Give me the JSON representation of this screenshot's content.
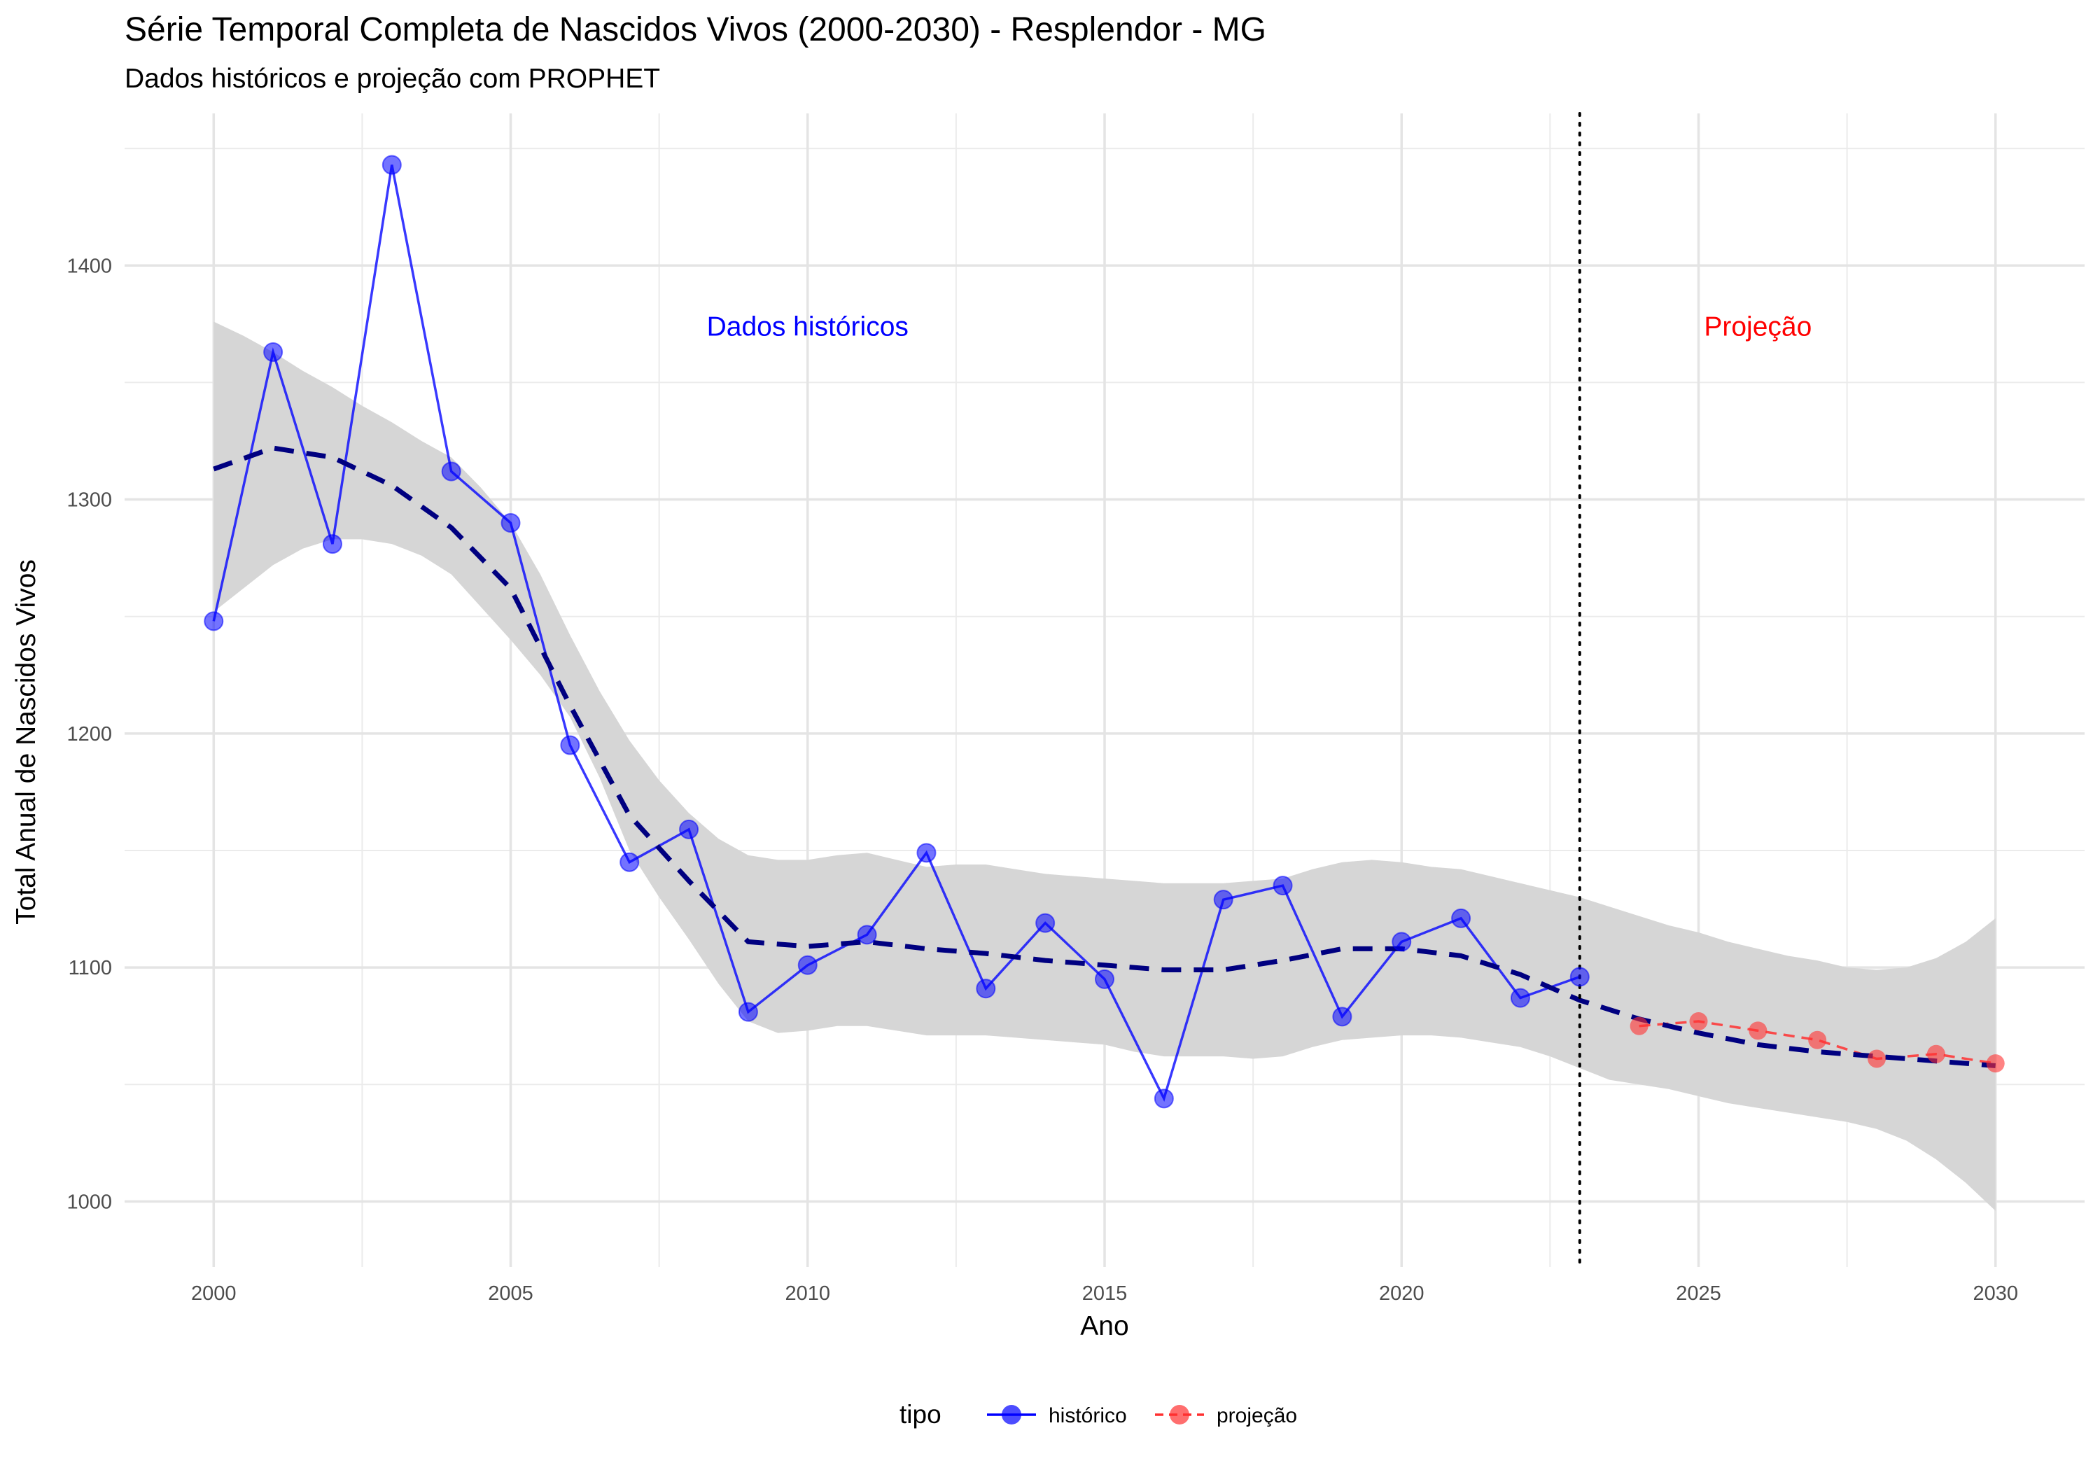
{
  "chart_data": {
    "type": "line",
    "title": "Série Temporal Completa de Nascidos Vivos (2000-2030) -  Resplendor - MG",
    "subtitle": "Dados históricos e projeção com PROPHET",
    "xlabel": "Ano",
    "ylabel": "Total Anual de Nascidos Vivos",
    "xlim": [
      1998.5,
      2031.5
    ],
    "ylim": [
      972,
      1465
    ],
    "x_ticks": [
      2000,
      2005,
      2010,
      2015,
      2020,
      2025,
      2030
    ],
    "y_ticks": [
      1000,
      1100,
      1200,
      1300,
      1400
    ],
    "grid": true,
    "legend_position": "bottom",
    "legend": {
      "title": "tipo",
      "entries": [
        {
          "label": "histórico",
          "color": "#0000ff"
        },
        {
          "label": "projeção",
          "color": "#ff3030"
        }
      ]
    },
    "annotations": [
      {
        "text": "Dados históricos",
        "x": 2010,
        "y": 1370,
        "color": "#0000ff"
      },
      {
        "text": "Projeção",
        "x": 2026,
        "y": 1370,
        "color": "#ff0000"
      }
    ],
    "vline_x": 2023,
    "series": [
      {
        "name": "histórico",
        "color": "#0000ff",
        "x": [
          2000,
          2001,
          2002,
          2003,
          2004,
          2005,
          2006,
          2007,
          2008,
          2009,
          2010,
          2011,
          2012,
          2013,
          2014,
          2015,
          2016,
          2017,
          2018,
          2019,
          2020,
          2021,
          2022,
          2023
        ],
        "values": [
          1248,
          1363,
          1281,
          1443,
          1312,
          1290,
          1195,
          1145,
          1159,
          1081,
          1101,
          1114,
          1149,
          1091,
          1119,
          1095,
          1044,
          1129,
          1135,
          1079,
          1111,
          1121,
          1087,
          1096
        ]
      },
      {
        "name": "projeção",
        "color": "#ff3030",
        "x": [
          2024,
          2025,
          2026,
          2027,
          2028,
          2029,
          2030
        ],
        "values": [
          1075,
          1077,
          1073,
          1069,
          1061,
          1063,
          1059
        ]
      }
    ],
    "trend": {
      "color": "#000080",
      "x": [
        2000,
        2001,
        2002,
        2003,
        2004,
        2005,
        2006,
        2007,
        2008,
        2009,
        2010,
        2011,
        2012,
        2013,
        2014,
        2015,
        2016,
        2017,
        2018,
        2019,
        2020,
        2021,
        2022,
        2023,
        2024,
        2025,
        2026,
        2027,
        2028,
        2029,
        2030
      ],
      "values": [
        1313,
        1322,
        1318,
        1306,
        1288,
        1262,
        1212,
        1165,
        1137,
        1111,
        1109,
        1111,
        1108,
        1106,
        1103,
        1101,
        1099,
        1099,
        1103,
        1108,
        1108,
        1105,
        1097,
        1086,
        1078,
        1072,
        1067,
        1064,
        1062,
        1060,
        1058
      ]
    },
    "interval": {
      "color": "#d6d6d6",
      "x": [
        2000,
        2000.5,
        2001,
        2001.5,
        2002,
        2002.5,
        2003,
        2003.5,
        2004,
        2004.5,
        2005,
        2005.5,
        2006,
        2006.5,
        2007,
        2007.5,
        2008,
        2008.5,
        2009,
        2009.5,
        2010,
        2010.5,
        2011,
        2011.5,
        2012,
        2012.5,
        2013,
        2013.5,
        2014,
        2014.5,
        2015,
        2015.5,
        2016,
        2016.5,
        2017,
        2017.5,
        2018,
        2018.5,
        2019,
        2019.5,
        2020,
        2020.5,
        2021,
        2021.5,
        2022,
        2022.5,
        2023,
        2023.5,
        2024,
        2024.5,
        2025,
        2025.5,
        2026,
        2026.5,
        2027,
        2027.5,
        2028,
        2028.5,
        2029,
        2029.5,
        2030
      ],
      "upper": [
        1376,
        1370,
        1363,
        1355,
        1348,
        1340,
        1333,
        1325,
        1318,
        1305,
        1290,
        1268,
        1242,
        1218,
        1197,
        1180,
        1166,
        1155,
        1148,
        1146,
        1146,
        1148,
        1149,
        1146,
        1143,
        1144,
        1144,
        1142,
        1140,
        1139,
        1138,
        1137,
        1136,
        1136,
        1136,
        1137,
        1138,
        1142,
        1145,
        1146,
        1145,
        1143,
        1142,
        1139,
        1136,
        1133,
        1130,
        1126,
        1122,
        1118,
        1115,
        1111,
        1108,
        1105,
        1103,
        1100,
        1099,
        1100,
        1104,
        1111,
        1121
      ],
      "lower": [
        1252,
        1262,
        1272,
        1279,
        1283,
        1283,
        1281,
        1276,
        1268,
        1254,
        1240,
        1225,
        1207,
        1181,
        1150,
        1130,
        1112,
        1093,
        1077,
        1072,
        1073,
        1075,
        1075,
        1073,
        1071,
        1071,
        1071,
        1070,
        1069,
        1068,
        1067,
        1064,
        1062,
        1062,
        1062,
        1061,
        1062,
        1066,
        1069,
        1070,
        1071,
        1071,
        1070,
        1068,
        1066,
        1062,
        1057,
        1052,
        1050,
        1048,
        1045,
        1042,
        1040,
        1038,
        1036,
        1034,
        1031,
        1026,
        1018,
        1008,
        996
      ]
    }
  }
}
